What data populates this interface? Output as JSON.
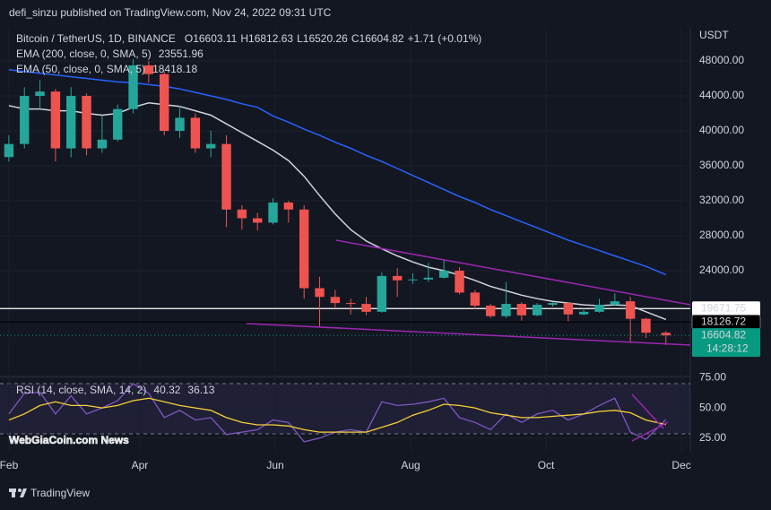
{
  "header": "defi_sinzu published on TradingView.com, Nov 24, 2022 09:31 UTC",
  "watermark": "WebGiaCoin.com News",
  "footer": "TradingView",
  "chart_data": {
    "type": "candlestick",
    "title": "Bitcoin / TetherUS, 1D, BINANCE",
    "ohlc": [
      {
        "label": "O",
        "value": 16603.11
      },
      {
        "label": "H",
        "value": 16812.63
      },
      {
        "label": "L",
        "value": 16520.26
      },
      {
        "label": "C",
        "value": 16604.82
      }
    ],
    "change": "+1.71 (+0.01%)",
    "up_color": "#26a69a",
    "down_color": "#ef5350",
    "x": [
      32,
      39,
      46,
      53,
      60,
      67,
      74,
      81,
      88,
      95,
      102,
      109,
      116,
      123,
      130,
      137,
      144,
      151,
      158,
      165,
      172,
      179,
      186,
      193,
      200,
      207,
      214,
      221,
      228,
      235,
      242,
      249,
      256,
      263,
      270,
      277,
      284,
      291,
      298,
      305,
      312,
      319,
      328
    ],
    "candles": {
      "open": [
        37000,
        38500,
        44000,
        44500,
        38000,
        44000,
        38000,
        39000,
        42500,
        47500,
        46500,
        40000,
        41500,
        38000,
        38500,
        31000,
        30000,
        29500,
        31800,
        31000,
        22000,
        21000,
        20300,
        20200,
        19300,
        23400,
        22900,
        23000,
        23200,
        24000,
        21500,
        20000,
        18800,
        20200,
        18900,
        20100,
        20300,
        19000,
        19300,
        20100,
        20500,
        18500,
        16900
      ],
      "high": [
        39500,
        45000,
        45800,
        44800,
        45000,
        44300,
        41700,
        43000,
        48200,
        48000,
        46800,
        42900,
        42000,
        40000,
        39500,
        31500,
        30600,
        32300,
        32000,
        31500,
        23300,
        21800,
        20800,
        21000,
        23800,
        24300,
        23700,
        24900,
        25200,
        24400,
        21800,
        20200,
        22700,
        20400,
        20300,
        20400,
        20400,
        19700,
        20800,
        21400,
        21000,
        18600,
        17100
      ],
      "low": [
        36500,
        38000,
        42500,
        36500,
        37000,
        37200,
        37500,
        38800,
        42000,
        45500,
        39500,
        39200,
        37500,
        37000,
        29000,
        28700,
        28600,
        29300,
        29500,
        20800,
        17600,
        19800,
        19000,
        18900,
        19200,
        21000,
        22500,
        22700,
        23100,
        21300,
        19600,
        18600,
        18600,
        18300,
        18800,
        19900,
        18200,
        18900,
        19200,
        20000,
        15700,
        16300,
        15500
      ],
      "close": [
        38500,
        44000,
        44500,
        38000,
        44000,
        38000,
        39000,
        42500,
        47500,
        46500,
        40000,
        41500,
        38000,
        38500,
        31000,
        30000,
        29500,
        31800,
        31000,
        22000,
        21000,
        20300,
        20200,
        19300,
        23400,
        22900,
        23000,
        23200,
        24000,
        21500,
        20000,
        18800,
        20200,
        18900,
        20100,
        20300,
        19000,
        19300,
        20100,
        20500,
        18500,
        16900,
        16604.82
      ]
    },
    "overlays": [
      {
        "name": "EMA (200, close, 0, SMA, 5)",
        "value": 23551.96,
        "color": "#2962ff",
        "values": [
          47000,
          46800,
          46600,
          46400,
          46200,
          46000,
          45800,
          45600,
          45500,
          45300,
          45100,
          44800,
          44400,
          44000,
          43600,
          43100,
          42700,
          41700,
          41000,
          40200,
          39500,
          38700,
          38000,
          37200,
          36500,
          35700,
          34900,
          34100,
          33300,
          32500,
          31800,
          31000,
          30300,
          29600,
          28900,
          28200,
          27500,
          26900,
          26300,
          25700,
          25100,
          24500,
          23551.96
        ]
      },
      {
        "name": "EMA (50, close, 0, SMA, 5)",
        "value": 18418.18,
        "color": "#d1d4dc",
        "values": [
          42900,
          42500,
          42500,
          42300,
          42300,
          42000,
          41800,
          42000,
          42700,
          43200,
          43000,
          42800,
          42300,
          41800,
          40800,
          39800,
          38800,
          37800,
          36600,
          34800,
          32600,
          30500,
          28700,
          27400,
          26500,
          25700,
          25000,
          24400,
          24000,
          23500,
          22900,
          22200,
          21700,
          21200,
          20800,
          20500,
          20300,
          20100,
          20000,
          20100,
          20000,
          19300,
          18418.18
        ]
      }
    ],
    "y_unit": "USDT",
    "ylim": [
      11900,
      51900
    ],
    "yticks": [
      {
        "value": 24000,
        "label": "24000.00"
      },
      {
        "value": 28000,
        "label": "28000.00"
      },
      {
        "value": 32000,
        "label": "32000.00"
      },
      {
        "value": 36000,
        "label": "36000.00"
      },
      {
        "value": 40000,
        "label": "40000.00"
      },
      {
        "value": 44000,
        "label": "44000.00"
      },
      {
        "value": 48000,
        "label": "48000.00"
      }
    ],
    "xlim": [
      28,
      339
    ],
    "xticks": [
      {
        "value": 32,
        "label": "Feb"
      },
      {
        "value": 91,
        "label": "Apr"
      },
      {
        "value": 152,
        "label": "Jun"
      },
      {
        "value": 213,
        "label": "Aug"
      },
      {
        "value": 274,
        "label": "Oct"
      },
      {
        "value": 335,
        "label": "Dec"
      }
    ],
    "price_lines": [
      {
        "value": 19671.75,
        "color": "#ffffff",
        "text_color": "#131722"
      },
      {
        "value": 18126.72,
        "color": "#000000",
        "text_color": "#ffffff"
      },
      {
        "value": 16604.82,
        "color": "#089981",
        "text_color": "#ffffff"
      }
    ],
    "countdown": "14:28:12",
    "rsi": {
      "name": "RSI (14, close, SMA, 14, 2)",
      "value": 40.32,
      "sma_value": 36.13,
      "color": "#7e57c2",
      "sma_color": "#f7d038",
      "values": [
        45,
        62,
        63,
        45,
        60,
        45,
        50,
        56,
        70,
        62,
        42,
        48,
        40,
        42,
        28,
        30,
        32,
        40,
        38,
        22,
        25,
        30,
        32,
        30,
        55,
        52,
        53,
        55,
        58,
        42,
        38,
        32,
        45,
        38,
        45,
        48,
        40,
        45,
        52,
        58,
        30,
        24,
        40.32
      ],
      "sma_values": [
        40,
        45,
        52,
        55,
        52,
        52,
        50,
        52,
        56,
        58,
        55,
        52,
        50,
        48,
        42,
        38,
        36,
        36,
        35,
        32,
        30,
        30,
        30,
        30,
        34,
        38,
        44,
        48,
        53,
        52,
        50,
        46,
        44,
        42,
        42,
        43,
        44,
        45,
        47,
        48,
        46,
        40,
        36.13
      ],
      "ylim": [
        13,
        76
      ],
      "yticks": [
        {
          "value": 25,
          "label": "25.00"
        },
        {
          "value": 50,
          "label": "50.00"
        },
        {
          "value": 75,
          "label": "75.00"
        }
      ]
    }
  }
}
